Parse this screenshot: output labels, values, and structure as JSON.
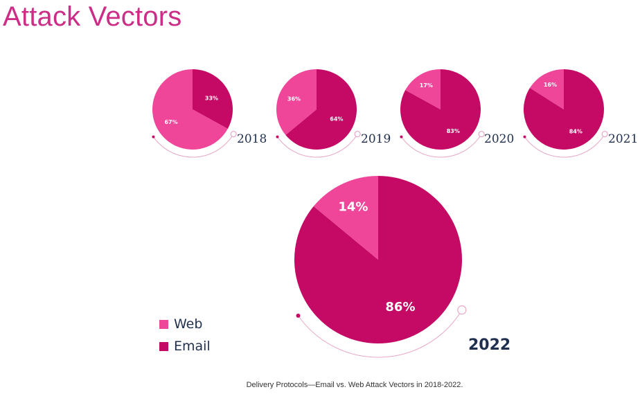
{
  "page": {
    "title": "Attack Vectors",
    "caption": "Delivery Protocols—Email vs. Web Attack Vectors in 2018-2022."
  },
  "colors": {
    "web": "#f0469a",
    "email": "#c40a64",
    "title": "#cc2d86",
    "year_label": "#1f2f4d",
    "arc": "#e8a4c6"
  },
  "chart_data": {
    "type": "pie",
    "legend": [
      {
        "name": "Web",
        "color": "#f0469a"
      },
      {
        "name": "Email",
        "color": "#c40a64"
      }
    ],
    "legend_placement": "bottom-left",
    "pies": [
      {
        "year": "2018",
        "web": 67,
        "email": 33,
        "web_label": "67%",
        "email_label": "33%"
      },
      {
        "year": "2019",
        "web": 36,
        "email": 64,
        "web_label": "36%",
        "email_label": "64%"
      },
      {
        "year": "2020",
        "web": 17,
        "email": 83,
        "web_label": "17%",
        "email_label": "83%"
      },
      {
        "year": "2021",
        "web": 16,
        "email": 84,
        "web_label": "16%",
        "email_label": "84%"
      },
      {
        "year": "2022",
        "web": 14,
        "email": 86,
        "web_label": "14%",
        "email_label": "86%"
      }
    ]
  }
}
